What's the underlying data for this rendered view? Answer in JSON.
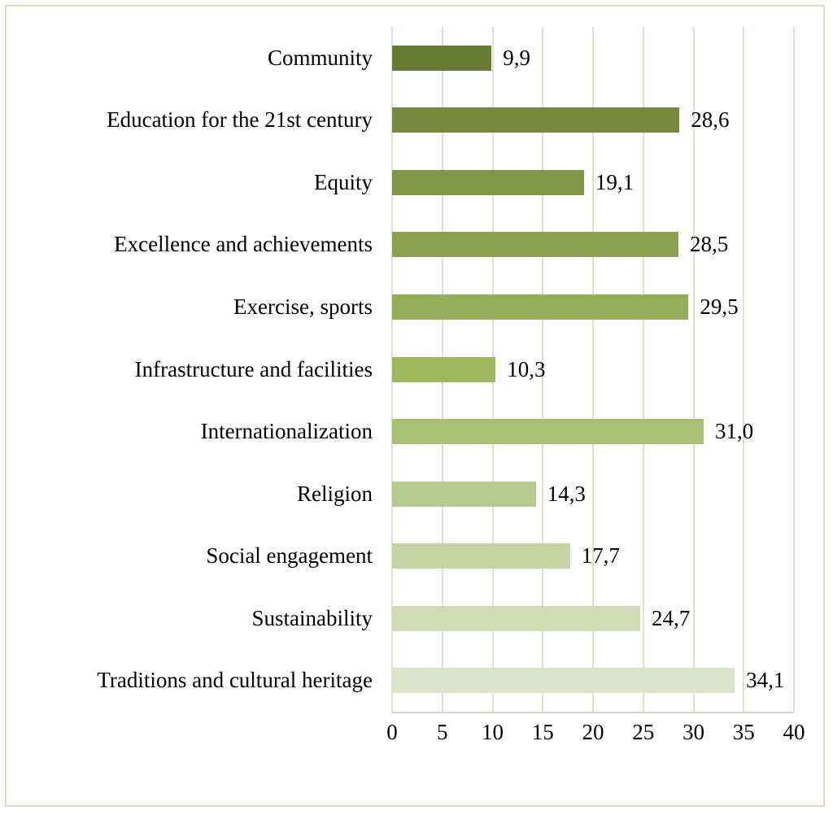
{
  "chart_data": {
    "type": "bar",
    "orientation": "horizontal",
    "title": "",
    "xlabel": "",
    "ylabel": "",
    "categories": [
      "Community",
      "Education for the 21st century",
      "Equity",
      "Excellence and achievements",
      "Exercise, sports",
      "Infrastructure and facilities",
      "Internationalization",
      "Religion",
      "Social engagement",
      "Sustainability",
      "Traditions and cultural heritage"
    ],
    "values": [
      9.9,
      28.6,
      19.1,
      28.5,
      29.5,
      10.3,
      31.0,
      14.3,
      17.7,
      24.7,
      34.1
    ],
    "value_labels": [
      "9,9",
      "28,6",
      "19,1",
      "28,5",
      "29,5",
      "10,3",
      "31,0",
      "14,3",
      "17,7",
      "24,7",
      "34,1"
    ],
    "bar_colors": [
      "#667c33",
      "#75893f",
      "#7f9747",
      "#8aa24f",
      "#93ad58",
      "#9db761",
      "#a7c073",
      "#b5ca8e",
      "#c3d3a4",
      "#cfdcb6",
      "#dae4c9"
    ],
    "x_ticks": [
      "0",
      "5",
      "10",
      "15",
      "20",
      "25",
      "30",
      "35",
      "40"
    ],
    "x_tick_values": [
      0,
      5,
      10,
      15,
      20,
      25,
      30,
      35,
      40
    ],
    "xlim": [
      0,
      40
    ],
    "grid": true,
    "legend": "none",
    "colors": {
      "gridline": "#e3dfcf",
      "axis_line": "#d9d5c0",
      "frame_border": "#dedbc8",
      "text": "#000000",
      "background": "#ffffff"
    }
  }
}
